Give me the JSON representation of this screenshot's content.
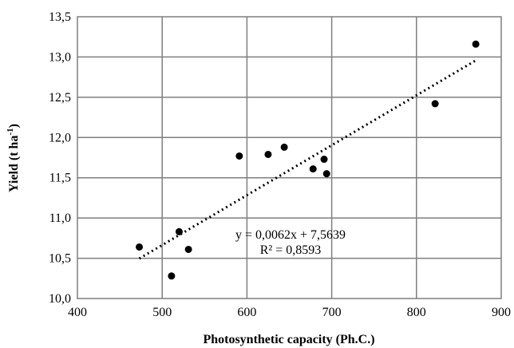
{
  "chart_data": {
    "type": "scatter",
    "xlabel": "Photosynthetic capacity (Ph.C.)",
    "ylabel_main": "Yield (t ha",
    "ylabel_sup": "-1",
    "ylabel_close": ")",
    "xlim": [
      400,
      900
    ],
    "ylim": [
      10.0,
      13.5
    ],
    "x_ticks": [
      400,
      500,
      600,
      700,
      800,
      900
    ],
    "x_tick_labels": [
      "400",
      "500",
      "600",
      "700",
      "800",
      "900"
    ],
    "y_ticks": [
      10.0,
      10.5,
      11.0,
      11.5,
      12.0,
      12.5,
      13.0,
      13.5
    ],
    "y_tick_labels": [
      "10,0",
      "10,5",
      "11,0",
      "11,5",
      "12,0",
      "12,5",
      "13,0",
      "13,5"
    ],
    "grid": true,
    "legend": "none",
    "marker_color": "#000000",
    "points": [
      {
        "x": 473,
        "y": 10.64
      },
      {
        "x": 511,
        "y": 10.28
      },
      {
        "x": 520,
        "y": 10.83
      },
      {
        "x": 531,
        "y": 10.61
      },
      {
        "x": 591,
        "y": 11.77
      },
      {
        "x": 625,
        "y": 11.79
      },
      {
        "x": 644,
        "y": 11.88
      },
      {
        "x": 678,
        "y": 11.61
      },
      {
        "x": 691,
        "y": 11.73
      },
      {
        "x": 694,
        "y": 11.55
      },
      {
        "x": 822,
        "y": 12.42
      },
      {
        "x": 870,
        "y": 13.16
      }
    ],
    "trendline": {
      "slope": 0.0062,
      "intercept": 7.5639,
      "x_range": [
        473,
        870
      ],
      "equation_label": "y = 0,0062x + 7,5639",
      "r2_label": "R² = 0,8593"
    }
  }
}
